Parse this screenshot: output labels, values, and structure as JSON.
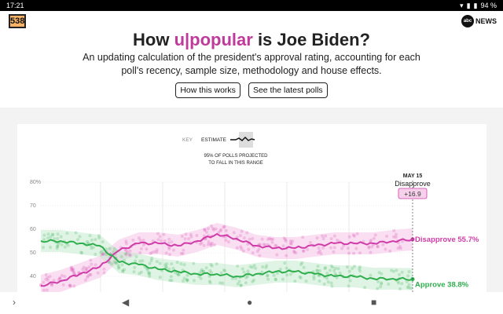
{
  "status": {
    "time": "17:21",
    "battery": "94 %"
  },
  "brand": {
    "logo": "538",
    "network": "NEWS"
  },
  "header": {
    "title_pre": "How ",
    "title_highlight": "u|popular",
    "title_post": " is Joe Biden?",
    "subtitle_line1": "An updating calculation of the president's approval rating, accounting for each",
    "subtitle_line2": "poll's recency, sample size, methodology and house effects.",
    "buttons": [
      "How this works",
      "See the latest polls"
    ]
  },
  "key": {
    "label": "KEY",
    "estimate": "ESTIMATE",
    "range_line1": "95% OF POLLS PROJECTED",
    "range_line2": "TO FALL IN THIS RANGE"
  },
  "colors": {
    "disapprove": "#d03ca8",
    "approve": "#2fae4e",
    "disapprove_band": "#f3b8e2",
    "approve_band": "#b8e6c4"
  },
  "chart_data": {
    "type": "line",
    "y_ticks": [
      "80%",
      "70",
      "60",
      "50",
      "40"
    ],
    "ylim": [
      35,
      82
    ],
    "marker": {
      "date": "MAY 15",
      "label": "Disapprove",
      "spread": "+16.9"
    },
    "series": [
      {
        "name": "Disapprove",
        "end_label": "Disapprove 55.7%",
        "values": [
          36,
          38,
          41,
          44,
          51,
          54,
          54,
          53,
          55,
          58,
          56,
          53,
          52,
          52,
          53,
          54,
          54,
          54,
          55,
          55.7
        ]
      },
      {
        "name": "Approve",
        "end_label": "Approve 38.8%",
        "values": [
          55,
          55,
          54,
          53,
          46,
          45,
          43,
          42,
          41,
          41,
          40,
          41,
          42,
          42,
          41,
          40,
          40,
          39,
          39,
          38.8
        ]
      }
    ]
  },
  "nav": {
    "back": "◀",
    "home": "●",
    "recents": "■",
    "more": "›"
  }
}
